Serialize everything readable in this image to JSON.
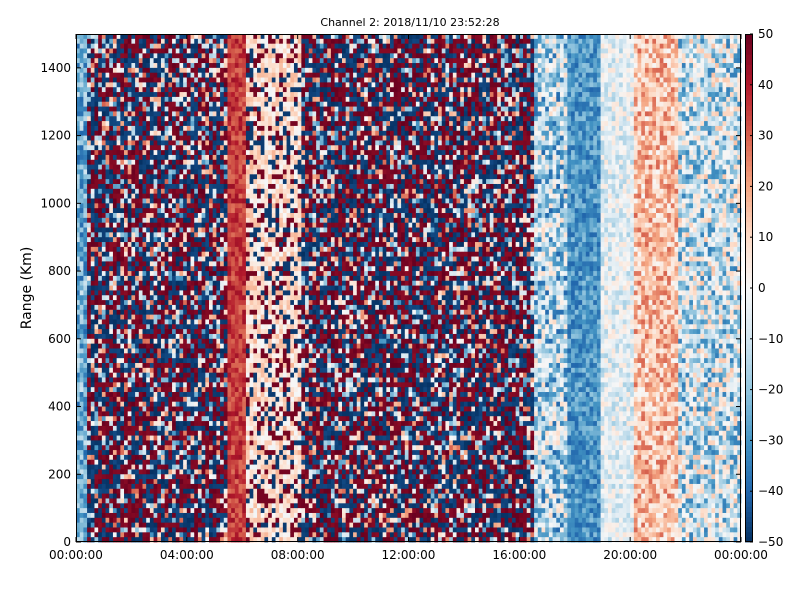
{
  "chart_data": {
    "type": "heatmap",
    "title": "Channel 2: 2018/11/10 23:52:28",
    "xlabel": "",
    "ylabel": "Range (Km)",
    "x_ticks": [
      "00:00:00",
      "04:00:00",
      "08:00:00",
      "12:00:00",
      "16:00:00",
      "20:00:00",
      "00:00:00"
    ],
    "x_tick_hours": [
      0,
      4,
      8,
      12,
      16,
      20,
      24
    ],
    "xlim_hours": [
      0,
      24
    ],
    "y_ticks": [
      0,
      200,
      400,
      600,
      800,
      1000,
      1200,
      1400
    ],
    "ylim": [
      0,
      1500
    ],
    "colorbar": {
      "colormap": "RdBu_r",
      "ticks": [
        -50,
        -40,
        -30,
        -20,
        -10,
        0,
        10,
        20,
        30,
        40,
        50
      ],
      "clim": [
        -50,
        50
      ]
    },
    "grid": false,
    "time_bands_hours": [
      {
        "from": 0.0,
        "to": 0.4,
        "pattern": "light blue noise",
        "mean": -25,
        "spread": 15
      },
      {
        "from": 0.4,
        "to": 5.5,
        "pattern": "saturated red/blue noise",
        "mean": 0,
        "spread": 50
      },
      {
        "from": 5.5,
        "to": 6.1,
        "pattern": "solid red/orange band",
        "mean": 35,
        "spread": 8
      },
      {
        "from": 6.1,
        "to": 8.2,
        "pattern": "pale with saturated speckles",
        "mean": 8,
        "spread": 25
      },
      {
        "from": 8.2,
        "to": 16.5,
        "pattern": "saturated red/blue noise",
        "mean": 0,
        "spread": 50
      },
      {
        "from": 16.5,
        "to": 17.8,
        "pattern": "light blue mixed noise",
        "mean": -15,
        "spread": 25
      },
      {
        "from": 17.8,
        "to": 19.0,
        "pattern": "blue band",
        "mean": -30,
        "spread": 10
      },
      {
        "from": 19.0,
        "to": 20.2,
        "pattern": "pale transition",
        "mean": -5,
        "spread": 12
      },
      {
        "from": 20.2,
        "to": 21.8,
        "pattern": "light orange noise",
        "mean": 15,
        "spread": 15
      },
      {
        "from": 21.8,
        "to": 24.0,
        "pattern": "light blue/grey noise",
        "mean": -10,
        "spread": 25
      }
    ]
  }
}
